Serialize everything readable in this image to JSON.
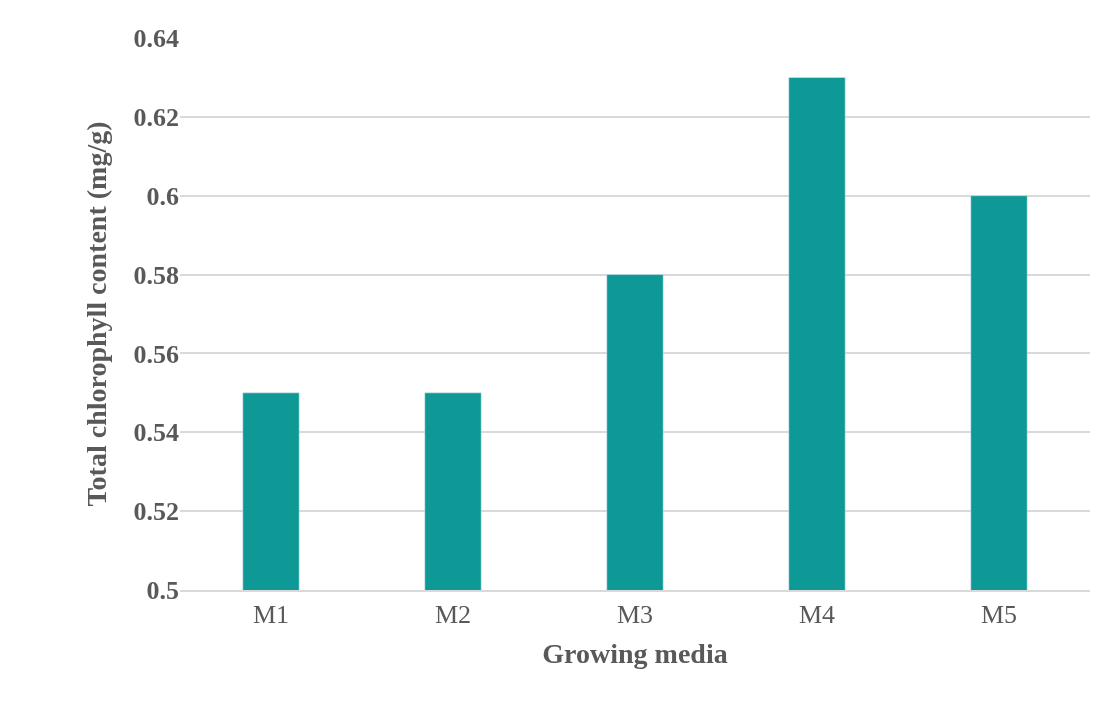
{
  "chart_data": {
    "type": "bar",
    "xlabel": "Growing media",
    "ylabel": "Total chlorophyll content (mg/g)",
    "categories": [
      "M1",
      "M2",
      "M3",
      "M4",
      "M5"
    ],
    "values": [
      0.55,
      0.55,
      0.58,
      0.63,
      0.6
    ],
    "color": "#0e9896",
    "ylim": [
      0.5,
      0.64
    ],
    "yticks": [
      0.5,
      0.52,
      0.54,
      0.56,
      0.58,
      0.6,
      0.62,
      0.64
    ],
    "grid": "y",
    "legend": false
  }
}
